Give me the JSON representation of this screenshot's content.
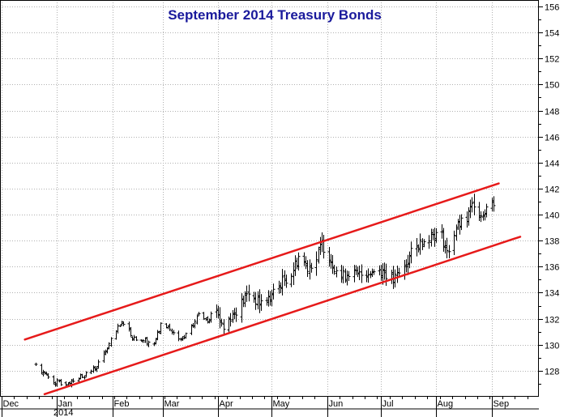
{
  "chart_data": {
    "type": "ohlc",
    "title": "September 2014 Treasury Bonds",
    "xlabel": "",
    "ylabel": "",
    "year_label": "2014",
    "grid": true,
    "y_axis_side": "right",
    "ylim": [
      126,
      156.5
    ],
    "y_ticks": [
      128,
      130,
      132,
      134,
      136,
      138,
      140,
      142,
      144,
      146,
      148,
      150,
      152,
      154,
      156
    ],
    "x_ticks": [
      {
        "label": "Dec",
        "date": "2013-12-01"
      },
      {
        "label": "Jan",
        "date": "2014-01-01"
      },
      {
        "label": "Feb",
        "date": "2014-02-01"
      },
      {
        "label": "Mar",
        "date": "2014-03-01"
      },
      {
        "label": "Apr",
        "date": "2014-04-01"
      },
      {
        "label": "May",
        "date": "2014-05-01"
      },
      {
        "label": "Jun",
        "date": "2014-06-01"
      },
      {
        "label": "Jul",
        "date": "2014-07-01"
      },
      {
        "label": "Aug",
        "date": "2014-08-01"
      },
      {
        "label": "Sep",
        "date": "2014-09-01"
      }
    ],
    "xlim": [
      "2013-12-01",
      "2014-09-22"
    ],
    "anchors": [
      [
        "2013-12-20",
        128.5
      ],
      [
        "2013-12-26",
        127.6
      ],
      [
        "2014-01-03",
        126.9
      ],
      [
        "2014-01-08",
        127.2
      ],
      [
        "2014-01-13",
        127.5
      ],
      [
        "2014-01-20",
        128.0
      ],
      [
        "2014-01-24",
        128.5
      ],
      [
        "2014-01-28",
        129.5
      ],
      [
        "2014-02-03",
        131.0
      ],
      [
        "2014-02-07",
        131.8
      ],
      [
        "2014-02-12",
        130.6
      ],
      [
        "2014-02-18",
        130.4
      ],
      [
        "2014-02-24",
        130.1
      ],
      [
        "2014-03-01",
        131.8
      ],
      [
        "2014-03-06",
        131.0
      ],
      [
        "2014-03-11",
        130.2
      ],
      [
        "2014-03-17",
        131.2
      ],
      [
        "2014-03-21",
        132.4
      ],
      [
        "2014-03-26",
        132.0
      ],
      [
        "2014-03-31",
        132.8
      ],
      [
        "2014-04-04",
        131.2
      ],
      [
        "2014-04-08",
        132.2
      ],
      [
        "2014-04-14",
        133.2
      ],
      [
        "2014-04-18",
        134.0
      ],
      [
        "2014-04-24",
        133.2
      ],
      [
        "2014-04-30",
        133.6
      ],
      [
        "2014-05-06",
        134.7
      ],
      [
        "2014-05-12",
        135.5
      ],
      [
        "2014-05-16",
        136.8
      ],
      [
        "2014-05-21",
        136.0
      ],
      [
        "2014-05-26",
        136.6
      ],
      [
        "2014-05-29",
        137.8
      ],
      [
        "2014-06-03",
        136.5
      ],
      [
        "2014-06-09",
        135.2
      ],
      [
        "2014-06-13",
        135.6
      ],
      [
        "2014-06-18",
        135.3
      ],
      [
        "2014-06-24",
        135.6
      ],
      [
        "2014-06-30",
        135.8
      ],
      [
        "2014-07-03",
        135.6
      ],
      [
        "2014-07-08",
        134.9
      ],
      [
        "2014-07-14",
        136.0
      ],
      [
        "2014-07-18",
        137.0
      ],
      [
        "2014-07-24",
        138.0
      ],
      [
        "2014-07-29",
        138.5
      ],
      [
        "2014-08-04",
        138.4
      ],
      [
        "2014-08-07",
        137.0
      ],
      [
        "2014-08-12",
        139.0
      ],
      [
        "2014-08-18",
        139.6
      ],
      [
        "2014-08-22",
        141.0
      ],
      [
        "2014-08-26",
        140.0
      ],
      [
        "2014-08-29",
        140.6
      ],
      [
        "2014-09-02",
        141.0
      ]
    ],
    "channel": {
      "upper": {
        "from": [
          "2013-12-14",
          130.4
        ],
        "to": [
          "2014-09-05",
          142.4
        ]
      },
      "lower": {
        "from": [
          "2013-12-25",
          126.2
        ],
        "to": [
          "2014-09-17",
          138.3
        ]
      }
    },
    "colors": {
      "bars": "#000000",
      "channel": "#e61a1a",
      "grid": "#b0b0b0",
      "title": "#1a1a9c"
    }
  }
}
